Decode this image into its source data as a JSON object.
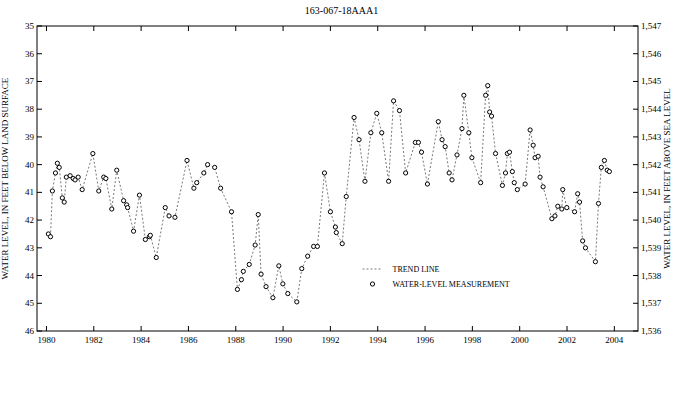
{
  "chart_data": {
    "type": "line",
    "title": "163-067-18AAA1",
    "y_label": "WATER LEVEL, IN FEET BELOW LAND SURFACE",
    "y2_label": "WATER LEVEL, IN FEET ABOVE SEA LEVEL",
    "x": [
      1980.08,
      1980.17,
      1980.25,
      1980.38,
      1980.46,
      1980.54,
      1980.67,
      1980.75,
      1980.84,
      1981.0,
      1981.13,
      1981.21,
      1981.34,
      1981.51,
      1981.96,
      1982.21,
      1982.42,
      1982.51,
      1982.76,
      1982.97,
      1983.26,
      1983.39,
      1983.43,
      1983.68,
      1983.93,
      1984.18,
      1984.35,
      1984.39,
      1984.64,
      1985.02,
      1985.18,
      1985.43,
      1985.94,
      1986.23,
      1986.35,
      1986.65,
      1986.81,
      1987.11,
      1987.36,
      1987.82,
      1988.07,
      1988.24,
      1988.32,
      1988.57,
      1988.82,
      1988.95,
      1989.07,
      1989.28,
      1989.57,
      1989.82,
      1989.99,
      1990.2,
      1990.58,
      1990.79,
      1991.04,
      1991.29,
      1991.45,
      1991.75,
      1992.0,
      1992.21,
      1992.25,
      1992.5,
      1992.67,
      1993.0,
      1993.21,
      1993.46,
      1993.71,
      1993.96,
      1994.17,
      1994.46,
      1994.67,
      1994.92,
      1995.18,
      1995.59,
      1995.72,
      1995.85,
      1996.1,
      1996.56,
      1996.72,
      1996.85,
      1997.02,
      1997.14,
      1997.35,
      1997.56,
      1997.64,
      1997.85,
      1997.98,
      1998.35,
      1998.56,
      1998.65,
      1998.73,
      1998.81,
      1998.98,
      1999.27,
      1999.4,
      1999.48,
      1999.57,
      1999.69,
      1999.77,
      1999.9,
      2000.23,
      2000.44,
      2000.57,
      2000.65,
      2000.78,
      2000.86,
      2000.99,
      2001.36,
      2001.49,
      2001.61,
      2001.78,
      2001.82,
      2001.99,
      2002.32,
      2002.45,
      2002.53,
      2002.66,
      2002.78,
      2003.2,
      2003.33,
      2003.45,
      2003.58,
      2003.7,
      2003.79
    ],
    "series": [
      {
        "name": "TREND LINE",
        "type": "line",
        "line_style": "dotted",
        "color": "#555555",
        "values": [
          42.5,
          42.6,
          40.95,
          40.3,
          39.95,
          40.1,
          41.2,
          41.35,
          40.45,
          40.4,
          40.5,
          40.55,
          40.45,
          40.9,
          39.6,
          40.95,
          40.45,
          40.5,
          41.6,
          40.2,
          41.3,
          41.45,
          41.55,
          42.4,
          41.1,
          42.7,
          42.6,
          42.55,
          43.35,
          41.55,
          41.85,
          41.9,
          39.85,
          40.85,
          40.65,
          40.3,
          40.0,
          40.1,
          40.85,
          41.7,
          44.5,
          44.15,
          43.85,
          43.6,
          42.9,
          41.8,
          43.95,
          44.4,
          44.8,
          43.65,
          44.3,
          44.65,
          44.95,
          43.75,
          43.3,
          42.95,
          42.95,
          40.3,
          41.7,
          42.25,
          42.45,
          42.85,
          41.15,
          38.3,
          39.1,
          40.6,
          38.85,
          38.15,
          38.85,
          40.6,
          37.7,
          38.05,
          40.3,
          39.2,
          39.2,
          39.55,
          40.7,
          38.45,
          39.1,
          39.35,
          40.3,
          40.55,
          39.65,
          38.7,
          37.5,
          38.85,
          39.75,
          40.65,
          37.5,
          37.15,
          38.1,
          38.25,
          39.6,
          40.75,
          40.3,
          39.6,
          39.55,
          40.25,
          40.65,
          40.9,
          40.7,
          38.75,
          39.3,
          39.75,
          39.7,
          40.45,
          40.8,
          41.95,
          41.85,
          41.5,
          41.6,
          40.9,
          41.55,
          41.7,
          41.05,
          41.35,
          42.75,
          43.0,
          43.5,
          41.4,
          40.1,
          39.85,
          40.2,
          40.25
        ]
      },
      {
        "name": "WATER-LEVEL MEASUREMENT",
        "type": "scatter",
        "marker": "circle",
        "color": "#000000",
        "values": [
          42.5,
          42.6,
          40.95,
          40.3,
          39.95,
          40.1,
          41.2,
          41.35,
          40.45,
          40.4,
          40.5,
          40.55,
          40.45,
          40.9,
          39.6,
          40.95,
          40.45,
          40.5,
          41.6,
          40.2,
          41.3,
          41.45,
          41.55,
          42.4,
          41.1,
          42.7,
          42.6,
          42.55,
          43.35,
          41.55,
          41.85,
          41.9,
          39.85,
          40.85,
          40.65,
          40.3,
          40.0,
          40.1,
          40.85,
          41.7,
          44.5,
          44.15,
          43.85,
          43.6,
          42.9,
          41.8,
          43.95,
          44.4,
          44.8,
          43.65,
          44.3,
          44.65,
          44.95,
          43.75,
          43.3,
          42.95,
          42.95,
          40.3,
          41.7,
          42.25,
          42.45,
          42.85,
          41.15,
          38.3,
          39.1,
          40.6,
          38.85,
          38.15,
          38.85,
          40.6,
          37.7,
          38.05,
          40.3,
          39.2,
          39.2,
          39.55,
          40.7,
          38.45,
          39.1,
          39.35,
          40.3,
          40.55,
          39.65,
          38.7,
          37.5,
          38.85,
          39.75,
          40.65,
          37.5,
          37.15,
          38.1,
          38.25,
          39.6,
          40.75,
          40.3,
          39.6,
          39.55,
          40.25,
          40.65,
          40.9,
          40.7,
          38.75,
          39.3,
          39.75,
          39.7,
          40.45,
          40.8,
          41.95,
          41.85,
          41.5,
          41.6,
          40.9,
          41.55,
          41.7,
          41.05,
          41.35,
          42.75,
          43.0,
          43.5,
          41.4,
          40.1,
          39.85,
          40.2,
          40.25
        ]
      }
    ],
    "xlim": [
      1979.6,
      2005.0
    ],
    "xticks": [
      1980,
      1982,
      1984,
      1986,
      1988,
      1990,
      1992,
      1994,
      1996,
      1998,
      2000,
      2002,
      2004
    ],
    "ylim": [
      46,
      35
    ],
    "yticks": [
      35,
      36,
      37,
      38,
      39,
      40,
      41,
      42,
      43,
      44,
      45,
      46
    ],
    "y2lim": [
      1536,
      1547
    ],
    "y2ticks": [
      {
        "value": 1536,
        "label": "1,536"
      },
      {
        "value": 1537,
        "label": "1,537"
      },
      {
        "value": 1538,
        "label": "1,538"
      },
      {
        "value": 1539,
        "label": "1,539"
      },
      {
        "value": 1540,
        "label": "1,540"
      },
      {
        "value": 1541,
        "label": "1,541"
      },
      {
        "value": 1542,
        "label": "1,542"
      },
      {
        "value": 1543,
        "label": "1,543"
      },
      {
        "value": 1544,
        "label": "1,544"
      },
      {
        "value": 1545,
        "label": "1,545"
      },
      {
        "value": 1546,
        "label": "1,546"
      },
      {
        "value": 1547,
        "label": "1,547"
      }
    ],
    "grid": false,
    "legend": "lower center"
  }
}
